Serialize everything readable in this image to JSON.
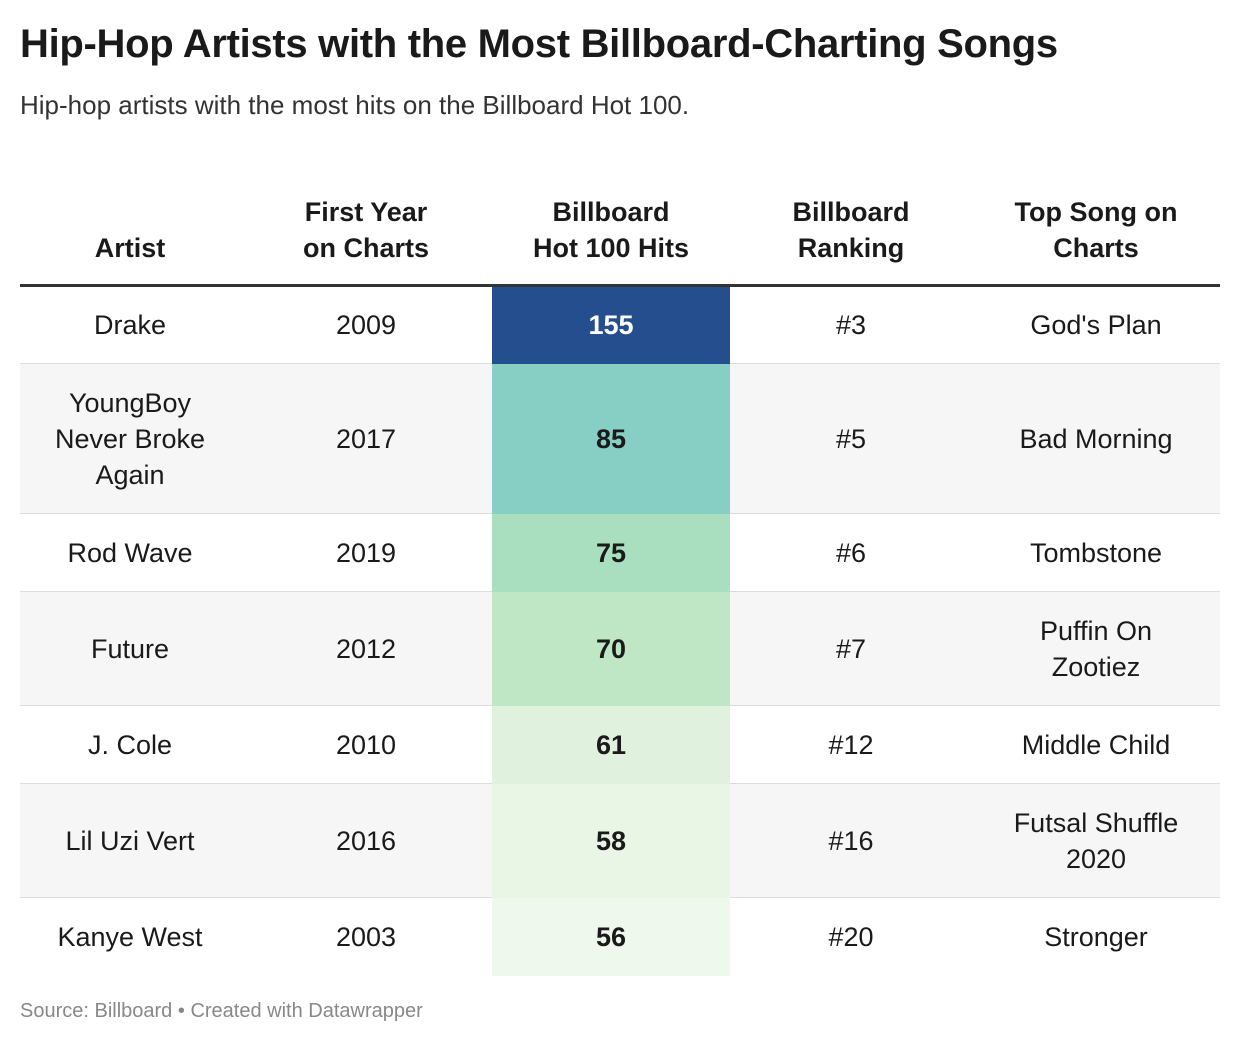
{
  "title": "Hip-Hop Artists with the Most Billboard-Charting Songs",
  "subtitle": "Hip-hop artists with the most hits on the Billboard Hot 100.",
  "footer": {
    "source": "Source: Billboard",
    "separator": "•",
    "credit": "Created with Datawrapper"
  },
  "colors": {
    "scale": [
      "#254e8f",
      "#87cfc4",
      "#a9dfbf",
      "#bfe6c5",
      "#e0f2dd",
      "#e9f6e6",
      "#eff8ec"
    ],
    "text_dark": "#1a1a1a",
    "text_light": "#ffffff"
  },
  "chart_data": {
    "type": "table",
    "columns": [
      "Artist",
      "First Year on Charts",
      "Billboard Hot 100 Hits",
      "Billboard Ranking",
      "Top Song on Charts"
    ],
    "header_lines": [
      [
        "Artist"
      ],
      [
        "First Year",
        "on Charts"
      ],
      [
        "Billboard",
        "Hot 100 Hits"
      ],
      [
        "Billboard",
        "Ranking"
      ],
      [
        "Top Song on",
        "Charts"
      ]
    ],
    "rows": [
      {
        "artist": [
          "Drake"
        ],
        "year": "2009",
        "hits": 155,
        "ranking": "#3",
        "song": [
          "God's Plan"
        ],
        "color": "#254e8f"
      },
      {
        "artist": [
          "YoungBoy",
          "Never Broke",
          "Again"
        ],
        "year": "2017",
        "hits": 85,
        "ranking": "#5",
        "song": [
          "Bad Morning"
        ],
        "color": "#87cfc4"
      },
      {
        "artist": [
          "Rod Wave"
        ],
        "year": "2019",
        "hits": 75,
        "ranking": "#6",
        "song": [
          "Tombstone"
        ],
        "color": "#a9dfbf"
      },
      {
        "artist": [
          "Future"
        ],
        "year": "2012",
        "hits": 70,
        "ranking": "#7",
        "song": [
          "Puffin On",
          "Zootiez"
        ],
        "color": "#bfe6c5"
      },
      {
        "artist": [
          "J. Cole"
        ],
        "year": "2010",
        "hits": 61,
        "ranking": "#12",
        "song": [
          "Middle Child"
        ],
        "color": "#e0f2dd"
      },
      {
        "artist": [
          "Lil Uzi Vert"
        ],
        "year": "2016",
        "hits": 58,
        "ranking": "#16",
        "song": [
          "Futsal Shuffle",
          "2020"
        ],
        "color": "#e9f6e6"
      },
      {
        "artist": [
          "Kanye West"
        ],
        "year": "2003",
        "hits": 56,
        "ranking": "#20",
        "song": [
          "Stronger"
        ],
        "color": "#eff8ec"
      }
    ]
  }
}
